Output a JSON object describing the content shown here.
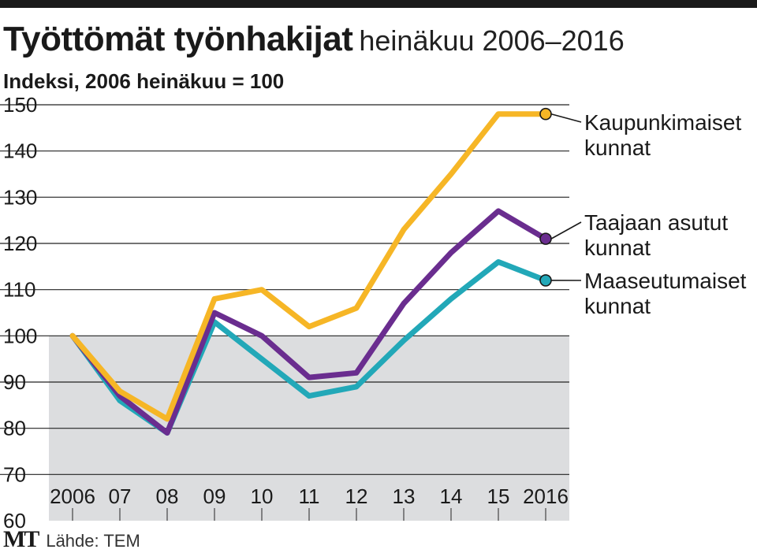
{
  "title": "Työttömät työnhakijat",
  "title_period": "heinäkuu 2006–2016",
  "subtitle": "Indeksi, 2006 heinäkuu = 100",
  "source": "Lähde: TEM",
  "logo": "MT",
  "chart_data": {
    "type": "line",
    "title": "Työttömät työnhakijat heinäkuu 2006–2016",
    "ylabel": "Indeksi, 2006 heinäkuu = 100",
    "xlabel": "",
    "ylim": [
      60,
      150
    ],
    "yticks": [
      "150",
      "140",
      "130",
      "120",
      "110",
      "100",
      "90",
      "80",
      "70",
      "60"
    ],
    "categories": [
      "2006",
      "07",
      "08",
      "09",
      "10",
      "11",
      "12",
      "13",
      "14",
      "15",
      "2016"
    ],
    "shaded_below": 100,
    "series": [
      {
        "name": "Kaupunkimaiset kunnat",
        "label_lines": [
          "Kaupunkimaiset",
          "kunnat"
        ],
        "color": "#f6b626",
        "values": [
          100,
          88,
          82,
          108,
          110,
          102,
          106,
          123,
          135,
          148,
          148
        ]
      },
      {
        "name": "Taajaan asutut kunnat",
        "label_lines": [
          "Taajaan asutut",
          "kunnat"
        ],
        "color": "#6a2d8f",
        "values": [
          100,
          87,
          79,
          105,
          100,
          91,
          92,
          107,
          118,
          127,
          121
        ]
      },
      {
        "name": "Maaseutumaiset kunnat",
        "label_lines": [
          "Maaseutumaiset",
          "kunnat"
        ],
        "color": "#22a8b8",
        "values": [
          100,
          86,
          79,
          103,
          95,
          87,
          89,
          99,
          108,
          116,
          112
        ]
      }
    ]
  }
}
